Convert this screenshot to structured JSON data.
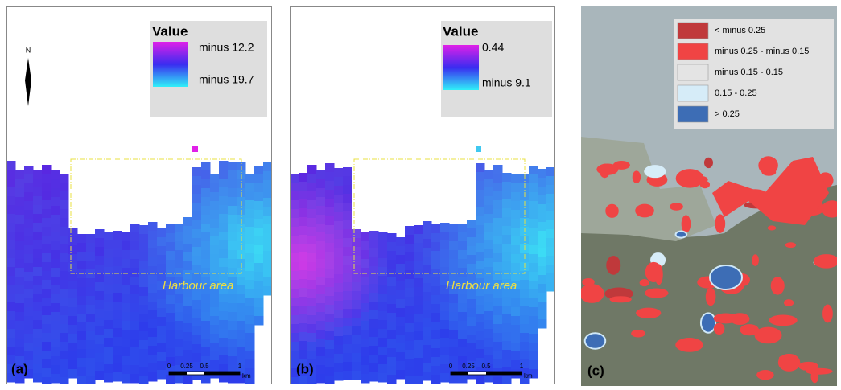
{
  "panels": [
    {
      "label": "(a)",
      "north": "N",
      "legend": {
        "title": "Value",
        "high": "minus 12.2",
        "low": "minus 19.7"
      },
      "annotation": "Harbour area",
      "scale_bar": {
        "ticks": [
          "0",
          "0.25",
          "0.5",
          "1"
        ],
        "unit": "km"
      }
    },
    {
      "label": "(b)",
      "legend": {
        "title": "Value",
        "high": "0.44",
        "low": "minus 9.1"
      },
      "annotation": "Harbour area",
      "scale_bar": {
        "ticks": [
          "0",
          "0.25",
          "0.5",
          "1"
        ],
        "unit": "km"
      }
    },
    {
      "label": "(c)",
      "legend": {
        "items": [
          {
            "label": "< minus 0.25",
            "color": "#c0393b"
          },
          {
            "label": "minus 0.25 - minus 0.15",
            "color": "#f04444"
          },
          {
            "label": "minus 0.15 - 0.15",
            "color": "#e4e4e4"
          },
          {
            "label": "0.15 - 0.25",
            "color": "#d6ecf8"
          },
          {
            "label": "> 0.25",
            "color": "#3d6db5"
          }
        ]
      }
    }
  ]
}
